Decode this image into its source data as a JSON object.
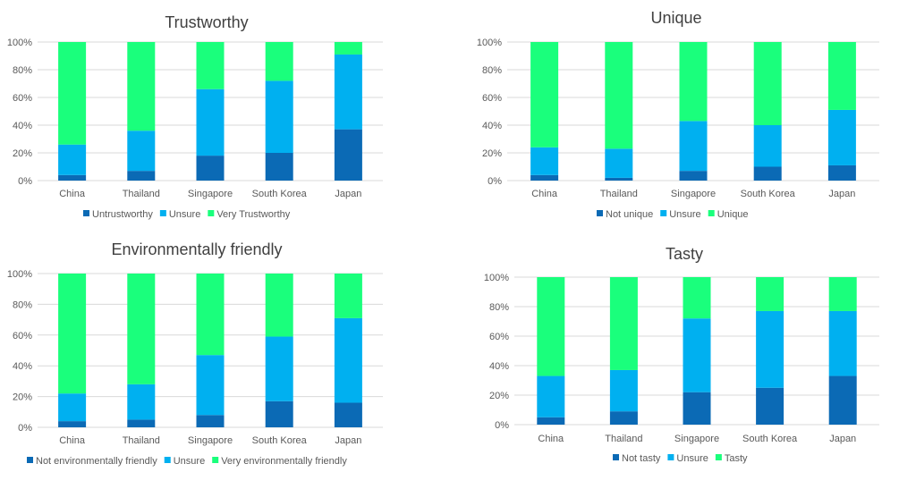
{
  "colors": {
    "dark_blue": "#0b6ab5",
    "light_blue": "#00b0f0",
    "green": "#1aff7c",
    "grid": "#d9d9d9",
    "axis_text": "#595959",
    "title_text": "#404040"
  },
  "chart_data": [
    {
      "type": "bar",
      "stacked": true,
      "percent": true,
      "title": "Trustworthy",
      "categories": [
        "China",
        "Thailand",
        "Singapore",
        "South Korea",
        "Japan"
      ],
      "y_ticks": [
        "0%",
        "20%",
        "40%",
        "60%",
        "80%",
        "100%"
      ],
      "ylim": [
        0,
        100
      ],
      "grid": true,
      "legend_position": "bottom",
      "series": [
        {
          "name": "Untrustworthy",
          "color": "#0b6ab5",
          "values": [
            4,
            7,
            18,
            20,
            37
          ]
        },
        {
          "name": "Unsure",
          "color": "#00b0f0",
          "values": [
            22,
            29,
            48,
            52,
            54
          ]
        },
        {
          "name": "Very Trustworthy",
          "color": "#1aff7c",
          "values": [
            74,
            64,
            34,
            28,
            9
          ]
        }
      ]
    },
    {
      "type": "bar",
      "stacked": true,
      "percent": true,
      "title": "Unique",
      "categories": [
        "China",
        "Thailand",
        "Singapore",
        "South Korea",
        "Japan"
      ],
      "y_ticks": [
        "0%",
        "20%",
        "40%",
        "60%",
        "80%",
        "100%"
      ],
      "ylim": [
        0,
        100
      ],
      "grid": true,
      "legend_position": "bottom",
      "series": [
        {
          "name": "Not unique",
          "color": "#0b6ab5",
          "values": [
            4,
            2,
            7,
            10,
            11
          ]
        },
        {
          "name": "Unsure",
          "color": "#00b0f0",
          "values": [
            20,
            21,
            36,
            30,
            40
          ]
        },
        {
          "name": "Unique",
          "color": "#1aff7c",
          "values": [
            76,
            77,
            57,
            60,
            49
          ]
        }
      ]
    },
    {
      "type": "bar",
      "stacked": true,
      "percent": true,
      "title": "Environmentally friendly",
      "categories": [
        "China",
        "Thailand",
        "Singapore",
        "South Korea",
        "Japan"
      ],
      "y_ticks": [
        "0%",
        "20%",
        "40%",
        "60%",
        "80%",
        "100%"
      ],
      "ylim": [
        0,
        100
      ],
      "grid": true,
      "legend_position": "bottom",
      "series": [
        {
          "name": "Not environmentally friendly",
          "color": "#0b6ab5",
          "values": [
            4,
            5,
            8,
            17,
            16
          ]
        },
        {
          "name": "Unsure",
          "color": "#00b0f0",
          "values": [
            18,
            23,
            39,
            42,
            55
          ]
        },
        {
          "name": "Very environmentally friendly",
          "color": "#1aff7c",
          "values": [
            78,
            72,
            53,
            41,
            29
          ]
        }
      ]
    },
    {
      "type": "bar",
      "stacked": true,
      "percent": true,
      "title": "Tasty",
      "categories": [
        "China",
        "Thailand",
        "Singapore",
        "South Korea",
        "Japan"
      ],
      "y_ticks": [
        "0%",
        "20%",
        "40%",
        "60%",
        "80%",
        "100%"
      ],
      "ylim": [
        0,
        100
      ],
      "grid": true,
      "legend_position": "bottom",
      "series": [
        {
          "name": "Not tasty",
          "color": "#0b6ab5",
          "values": [
            5,
            9,
            22,
            25,
            33
          ]
        },
        {
          "name": "Unsure",
          "color": "#00b0f0",
          "values": [
            28,
            28,
            50,
            52,
            44
          ]
        },
        {
          "name": "Tasty",
          "color": "#1aff7c",
          "values": [
            67,
            63,
            28,
            23,
            23
          ]
        }
      ]
    }
  ]
}
